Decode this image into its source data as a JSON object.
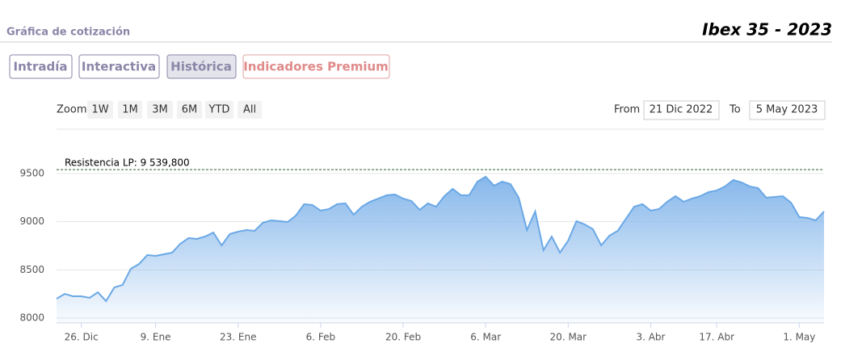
{
  "header": {
    "section": "Gráfica de cotización",
    "title": "Ibex 35 - 2023"
  },
  "tabs": [
    "Intradía",
    "Interactiva",
    "Histórica",
    "Indicadores Premium"
  ],
  "zoom": {
    "label": "Zoom",
    "buttons": [
      "1W",
      "1M",
      "3M",
      "6M",
      "YTD",
      "All"
    ]
  },
  "range": {
    "from_label": "From",
    "from": "21 Dic 2022",
    "to_label": "To",
    "to": "5 May 2023"
  },
  "chart_data": {
    "type": "area",
    "categories": [
      null,
      null,
      null,
      "26. Dic",
      null,
      null,
      null,
      null,
      null,
      null,
      null,
      null,
      "9. Ene",
      null,
      null,
      null,
      null,
      null,
      null,
      null,
      null,
      null,
      "23. Ene",
      null,
      null,
      null,
      null,
      null,
      null,
      null,
      null,
      null,
      "6. Feb",
      null,
      null,
      null,
      null,
      null,
      null,
      null,
      null,
      null,
      "20. Feb",
      null,
      null,
      null,
      null,
      null,
      null,
      null,
      null,
      null,
      "6. Mar",
      null,
      null,
      null,
      null,
      null,
      null,
      null,
      null,
      null,
      "20. Mar",
      null,
      null,
      null,
      null,
      null,
      null,
      null,
      null,
      null,
      "3. Abr",
      null,
      null,
      null,
      null,
      null,
      null,
      null,
      "17. Abr",
      null,
      null,
      null,
      null,
      null,
      null,
      null,
      null,
      null,
      "1. May",
      null,
      null,
      null
    ],
    "values": [
      8201,
      8251,
      8226,
      8226,
      8210,
      8268,
      8176,
      8318,
      8344,
      8511,
      8561,
      8654,
      8645,
      8662,
      8679,
      8771,
      8830,
      8821,
      8846,
      8888,
      8754,
      8872,
      8897,
      8913,
      8905,
      8989,
      9014,
      9006,
      8997,
      9064,
      9182,
      9173,
      9115,
      9131,
      9182,
      9190,
      9073,
      9156,
      9207,
      9240,
      9274,
      9282,
      9240,
      9215,
      9123,
      9190,
      9156,
      9265,
      9341,
      9274,
      9274,
      9416,
      9467,
      9374,
      9416,
      9391,
      9249,
      8913,
      9106,
      8704,
      8846,
      8679,
      8804,
      9006,
      8972,
      8922,
      8754,
      8855,
      8905,
      9031,
      9156,
      9182,
      9115,
      9131,
      9207,
      9265,
      9207,
      9240,
      9265,
      9307,
      9324,
      9366,
      9433,
      9408,
      9366,
      9349,
      9249,
      9257,
      9265,
      9198,
      9048,
      9039,
      9014,
      9106
    ],
    "color": "#6aa8e6",
    "ylim": [
      7950,
      9960
    ],
    "yticks": [
      8000,
      8500,
      9000,
      9500
    ],
    "grid": true,
    "annotation": {
      "value": 9539.8,
      "label": "Resistencia LP: 9 539,800"
    }
  }
}
